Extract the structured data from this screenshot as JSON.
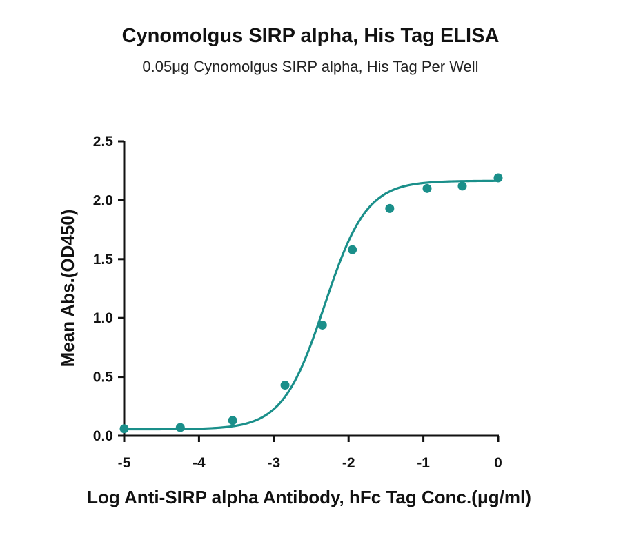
{
  "chart_data": {
    "type": "scatter",
    "title": "Cynomolgus SIRP alpha, His Tag ELISA",
    "subtitle": "0.05μg Cynomolgus SIRP alpha, His Tag Per Well",
    "xlabel": "Log Anti-SIRP alpha Antibody, hFc Tag Conc.(μg/ml)",
    "ylabel": "Mean Abs.(OD450)",
    "xlim": [
      -5,
      0
    ],
    "ylim": [
      0,
      2.5
    ],
    "xticks": [
      -5,
      -4,
      -3,
      -2,
      -1,
      0
    ],
    "yticks": [
      0.0,
      0.5,
      1.0,
      1.5,
      2.0,
      2.5
    ],
    "xtick_labels": [
      "-5",
      "-4",
      "-3",
      "-2",
      "-1",
      "0"
    ],
    "ytick_labels": [
      "0.0",
      "0.5",
      "1.0",
      "1.5",
      "2.0",
      "2.5"
    ],
    "grid": false,
    "color": "#1a8f8a",
    "series": [
      {
        "x": [
          -5.0,
          -4.25,
          -3.55,
          -2.85,
          -2.35,
          -1.95,
          -1.45,
          -0.95,
          -0.48,
          0.0
        ],
        "y": [
          0.06,
          0.07,
          0.13,
          0.43,
          0.94,
          1.58,
          1.93,
          2.1,
          2.12,
          2.19
        ]
      }
    ],
    "fit": {
      "model": "4PL",
      "bottom": 0.055,
      "top": 2.165,
      "logEC50": -2.32,
      "hill": 1.55
    }
  }
}
